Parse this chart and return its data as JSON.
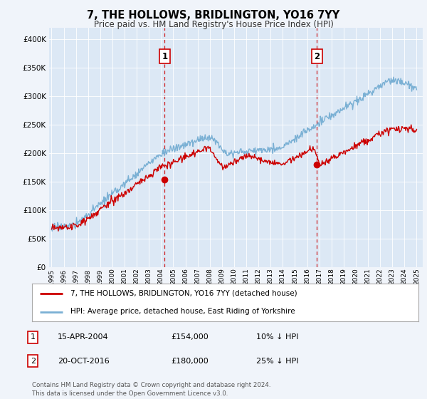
{
  "title": "7, THE HOLLOWS, BRIDLINGTON, YO16 7YY",
  "subtitle": "Price paid vs. HM Land Registry's House Price Index (HPI)",
  "background_color": "#f0f4fa",
  "plot_bg_color": "#dce8f5",
  "ylim": [
    0,
    420000
  ],
  "yticks": [
    0,
    50000,
    100000,
    150000,
    200000,
    250000,
    300000,
    350000,
    400000
  ],
  "x_start_year": 1995,
  "x_end_year": 2025,
  "sale1_year": 2004.29,
  "sale1_price": 154000,
  "sale1_label": "1",
  "sale1_date": "15-APR-2004",
  "sale2_year": 2016.81,
  "sale2_price": 180000,
  "sale2_label": "2",
  "sale2_date": "20-OCT-2016",
  "red_color": "#cc0000",
  "blue_color": "#7ab0d4",
  "legend_label_red": "7, THE HOLLOWS, BRIDLINGTON, YO16 7YY (detached house)",
  "legend_label_blue": "HPI: Average price, detached house, East Riding of Yorkshire",
  "footnote": "Contains HM Land Registry data © Crown copyright and database right 2024.\nThis data is licensed under the Open Government Licence v3.0.",
  "table_rows": [
    {
      "num": "1",
      "date": "15-APR-2004",
      "price": "£154,000",
      "hpi": "10% ↓ HPI"
    },
    {
      "num": "2",
      "date": "20-OCT-2016",
      "price": "£180,000",
      "hpi": "25% ↓ HPI"
    }
  ]
}
